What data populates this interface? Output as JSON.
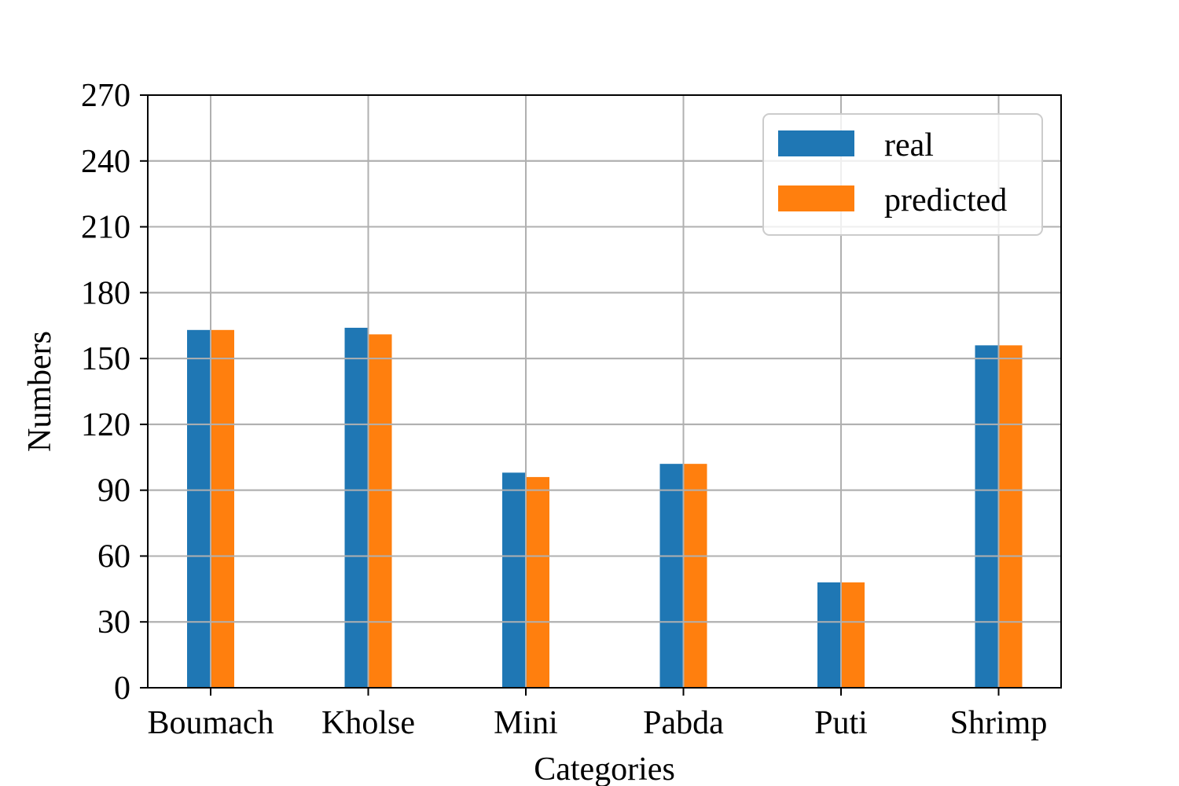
{
  "chart_data": {
    "type": "bar",
    "categories": [
      "Boumach",
      "Kholse",
      "Mini",
      "Pabda",
      "Puti",
      "Shrimp"
    ],
    "series": [
      {
        "name": "real",
        "values": [
          163,
          164,
          98,
          102,
          48,
          156
        ],
        "color": "#1f77b4"
      },
      {
        "name": "predicted",
        "values": [
          163,
          161,
          96,
          102,
          48,
          156
        ],
        "color": "#ff7f0e"
      }
    ],
    "xlabel": "Categories",
    "ylabel": "Numbers",
    "ylim": [
      0,
      270
    ],
    "yticks": [
      "0",
      "30",
      "60",
      "90",
      "120",
      "150",
      "180",
      "210",
      "240",
      "270"
    ],
    "grid": true,
    "legend_position": "top-right"
  }
}
